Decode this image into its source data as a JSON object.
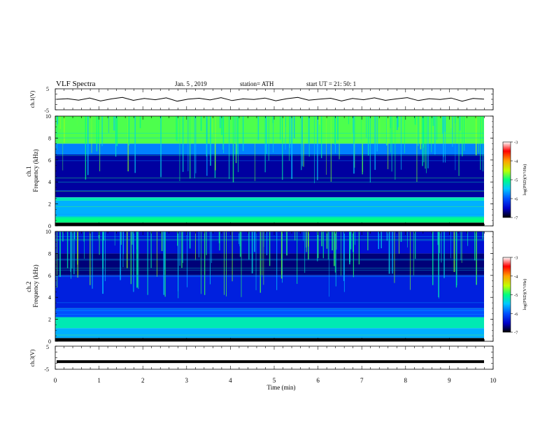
{
  "header": {
    "title": "VLF  Spectra",
    "date": "Jan. 5 , 2019",
    "station": "station= ATH",
    "start": "start  UT  =   21: 50: 1"
  },
  "chart_data": [
    {
      "type": "line",
      "panel": "ch1-waveform",
      "ylabel": "ch.1(V)",
      "ylim": [
        -5,
        5
      ],
      "yticks": [
        "5",
        "-5"
      ],
      "series": [
        {
          "values": [
            0.0,
            0.3,
            -0.4,
            0.6,
            -0.8,
            0.2,
            0.9,
            -0.5,
            0.4,
            -0.2,
            0.7,
            -0.9,
            0.1,
            0.5,
            -0.3,
            0.8,
            -0.6,
            0.2,
            -0.1,
            0.6,
            -0.7,
            0.3,
            0.9,
            -0.4,
            0.1,
            0.5,
            -0.8,
            0.4,
            -0.2,
            0.7,
            -0.5,
            0.2,
            0.8,
            -0.6,
            0.3,
            -0.1,
            0.6,
            -0.9,
            0.4,
            0.1
          ]
        }
      ]
    },
    {
      "type": "heatmap",
      "panel": "ch1-spectrogram",
      "ylabel": "ch.1\nFrequency  (kHz)",
      "ylim": [
        0,
        10
      ],
      "yticks": [
        "10",
        "8",
        "6",
        "4",
        "2",
        "0"
      ],
      "xlim": [
        0,
        10
      ],
      "xticks": [
        "0",
        "1",
        "2",
        "3",
        "4",
        "5",
        "6",
        "7",
        "8",
        "9",
        "10"
      ],
      "colorbar": {
        "label": "log(PSD)(V²/Hz)",
        "range": [
          -7,
          -3
        ],
        "ticks": [
          "-3",
          "-4",
          "-5",
          "-6",
          "-7"
        ]
      },
      "bands": [
        {
          "from": 0,
          "to": 0.3,
          "level": -7
        },
        {
          "from": 0.3,
          "to": 0.8,
          "level": -5
        },
        {
          "from": 0.8,
          "to": 2.3,
          "level": -5.6
        },
        {
          "from": 2.3,
          "to": 2.6,
          "level": -5.2
        },
        {
          "from": 2.6,
          "to": 6.5,
          "level": -6.6
        },
        {
          "from": 6.5,
          "to": 7.5,
          "level": -5.8
        },
        {
          "from": 7.5,
          "to": 10,
          "level": -4.8
        }
      ]
    },
    {
      "type": "heatmap",
      "panel": "ch2-spectrogram",
      "ylabel": "ch.2\nFrequency  (kHz)",
      "ylim": [
        0,
        10
      ],
      "yticks": [
        "10",
        "8",
        "6",
        "4",
        "2",
        "0"
      ],
      "xlim": [
        0,
        10
      ],
      "xticks": [
        "0",
        "1",
        "2",
        "3",
        "4",
        "5",
        "6",
        "7",
        "8",
        "9",
        "10"
      ],
      "colorbar": {
        "label": "log(PSD)(V²/Hz)",
        "range": [
          -7,
          -3
        ],
        "ticks": [
          "-3",
          "-4",
          "-5",
          "-6",
          "-7"
        ]
      },
      "bands": [
        {
          "from": 0,
          "to": 0.3,
          "level": -7
        },
        {
          "from": 0.3,
          "to": 1.2,
          "level": -5.6
        },
        {
          "from": 1.2,
          "to": 2.2,
          "level": -5.2
        },
        {
          "from": 2.2,
          "to": 3.0,
          "level": -6.0
        },
        {
          "from": 3.0,
          "to": 6.0,
          "level": -6.3
        },
        {
          "from": 6.0,
          "to": 8.0,
          "level": -6.7
        },
        {
          "from": 8.0,
          "to": 10,
          "level": -6.4
        }
      ]
    },
    {
      "type": "line",
      "panel": "ch3-waveform",
      "ylabel": "ch.3(V)",
      "ylim": [
        -5,
        5
      ],
      "yticks": [
        "5",
        "-5"
      ],
      "xlabel": "Time  (min)",
      "xlim": [
        0,
        10
      ],
      "xticks": [
        "0",
        "1",
        "2",
        "3",
        "4",
        "5",
        "6",
        "7",
        "8",
        "9",
        "10"
      ],
      "series": [
        {
          "values": [
            -1.7,
            -1.7,
            -1.7,
            -1.7,
            -1.7,
            -1.7,
            -1.7,
            -1.7,
            -1.7,
            -1.7
          ]
        }
      ]
    }
  ],
  "colors": {
    "colormap": [
      "#000000",
      "#0000c8",
      "#0050ff",
      "#00c8ff",
      "#00ff80",
      "#c0ff00",
      "#ffa000",
      "#ff0000",
      "#ffffff"
    ],
    "trace": "#000000"
  }
}
